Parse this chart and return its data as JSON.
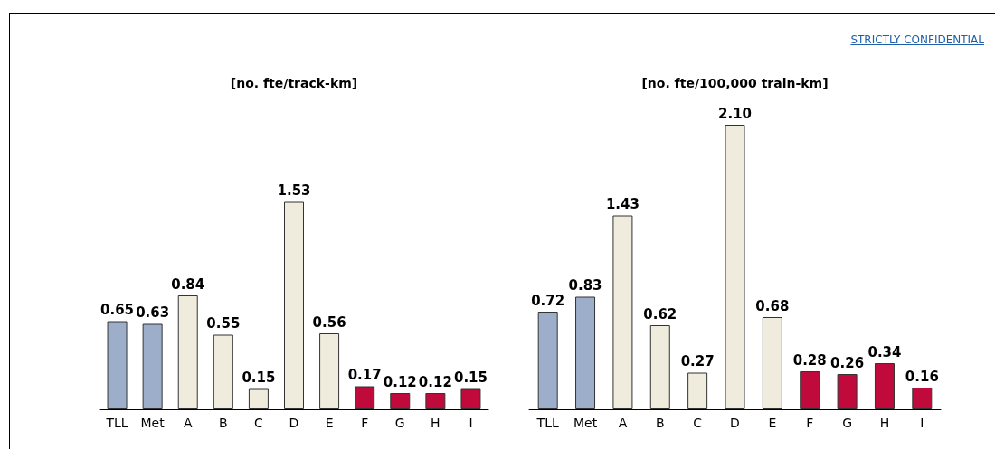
{
  "chart_data": [
    {
      "type": "bar",
      "title": "[no. fte/track-km]",
      "annotations": [
        "STRICTLY CONFIDENTIAL"
      ],
      "categories": [
        "TLL",
        "Met",
        "A",
        "B",
        "C",
        "D",
        "E",
        "F",
        "G",
        "H",
        "I"
      ],
      "values": [
        0.65,
        0.63,
        0.84,
        0.55,
        0.15,
        1.53,
        0.56,
        0.17,
        0.12,
        0.12,
        0.15
      ],
      "colors": [
        "#9daecb",
        "#9daecb",
        "#efebdd",
        "#efebdd",
        "#efebdd",
        "#efebdd",
        "#efebdd",
        "#c00a3c",
        "#c00a3c",
        "#c00a3c",
        "#c00a3c"
      ],
      "value_labels": [
        "0.65",
        "0.63",
        "0.84",
        "0.55",
        "0.15",
        "1.53",
        "0.56",
        "0.17",
        "0.12",
        "0.12",
        "0.15"
      ]
    },
    {
      "type": "bar",
      "title": "[no. fte/100,000 train-km]",
      "categories": [
        "TLL",
        "Met",
        "A",
        "B",
        "C",
        "D",
        "E",
        "F",
        "G",
        "H",
        "I"
      ],
      "values": [
        0.72,
        0.83,
        1.43,
        0.62,
        0.27,
        2.1,
        0.68,
        0.28,
        0.26,
        0.34,
        0.16
      ],
      "colors": [
        "#9daecb",
        "#9daecb",
        "#efebdd",
        "#efebdd",
        "#efebdd",
        "#efebdd",
        "#efebdd",
        "#c00a3c",
        "#c00a3c",
        "#c00a3c",
        "#c00a3c"
      ],
      "value_labels": [
        "0.72",
        "0.83",
        "1.43",
        "0.62",
        "0.27",
        "2.10",
        "0.68",
        "0.28",
        "0.26",
        "0.34",
        "0.16"
      ]
    }
  ]
}
